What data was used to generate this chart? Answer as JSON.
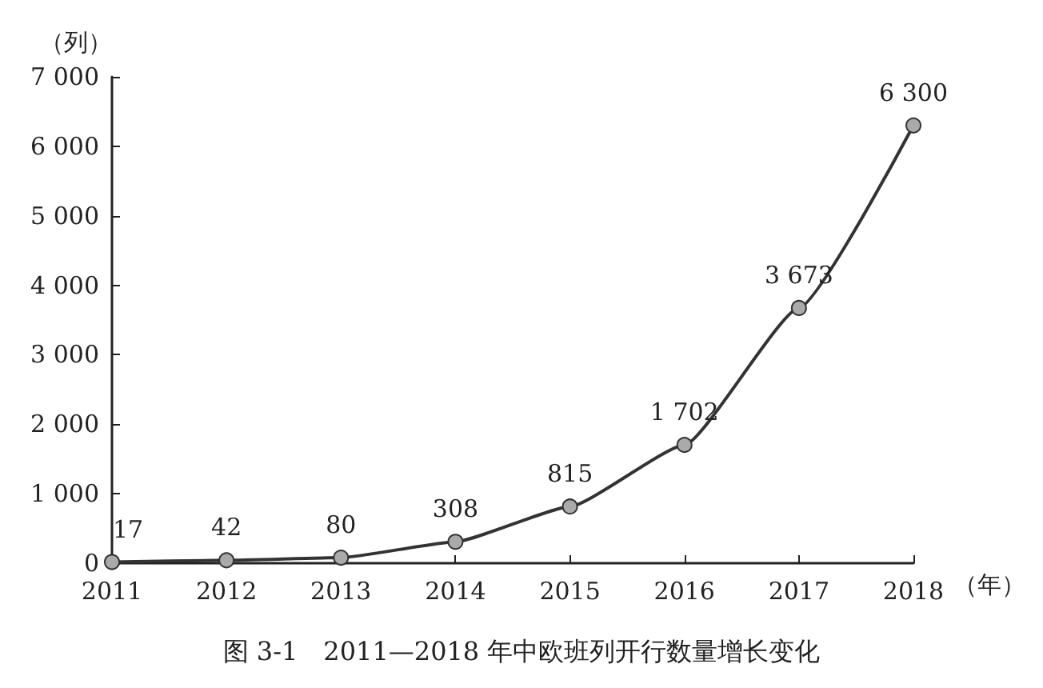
{
  "chart_data": {
    "type": "line",
    "title": "图 3-1　2011—2018 年中欧班列开行数量增长变化",
    "xlabel": "（年）",
    "ylabel": "（列）",
    "categories": [
      "2011",
      "2012",
      "2013",
      "2014",
      "2015",
      "2016",
      "2017",
      "2018"
    ],
    "series": [
      {
        "color": "#333333",
        "values": [
          17,
          42,
          80,
          308,
          815,
          1702,
          3673,
          6300
        ],
        "value_labels": [
          "17",
          "42",
          "80",
          "308",
          "815",
          "1 702",
          "3 673",
          "6 300"
        ]
      }
    ],
    "ylim": [
      0,
      7000
    ],
    "yticks": [
      0,
      {
        "value": 1000,
        "label": "1 000"
      },
      {
        "value": 2000,
        "label": "2 000"
      },
      {
        "value": 3000,
        "label": "3 000"
      },
      {
        "value": 4000,
        "label": "4 000"
      },
      {
        "value": 5000,
        "label": "5 000"
      },
      {
        "value": 6000,
        "label": "6 000"
      },
      {
        "value": 7000,
        "label": "7 000"
      }
    ],
    "marker": "circle",
    "line_style": "solid",
    "grid": false
  }
}
